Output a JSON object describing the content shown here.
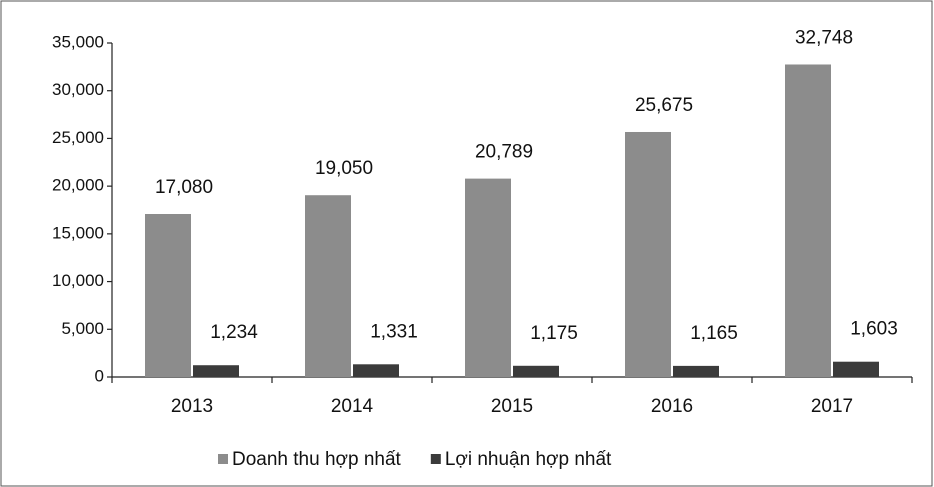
{
  "chart_data": {
    "type": "bar",
    "categories": [
      "2013",
      "2014",
      "2015",
      "2016",
      "2017"
    ],
    "series": [
      {
        "name": "Doanh thu hợp nhất",
        "color": "#8c8c8c",
        "values": [
          17080,
          19050,
          20789,
          25675,
          32748
        ],
        "value_labels": [
          "17,080",
          "19,050",
          "20,789",
          "25,675",
          "32,748"
        ]
      },
      {
        "name": "Lợi nhuận hợp nhất",
        "color": "#3b3b3b",
        "values": [
          1234,
          1331,
          1175,
          1165,
          1603
        ],
        "value_labels": [
          "1,234",
          "1,331",
          "1,175",
          "1,165",
          "1,603"
        ]
      }
    ],
    "ylim": [
      0,
      35000
    ],
    "yticks": [
      0,
      {
        "value": 5000,
        "label": "5,000"
      },
      {
        "value": 10000,
        "label": "10,000"
      },
      {
        "value": 15000,
        "label": "15,000"
      },
      {
        "value": 20000,
        "label": "20,000"
      },
      {
        "value": 25000,
        "label": "25,000"
      },
      {
        "value": 30000,
        "label": "30,000"
      },
      {
        "value": 35000,
        "label": "35,000"
      }
    ],
    "grid": false,
    "legend": "bottom"
  }
}
